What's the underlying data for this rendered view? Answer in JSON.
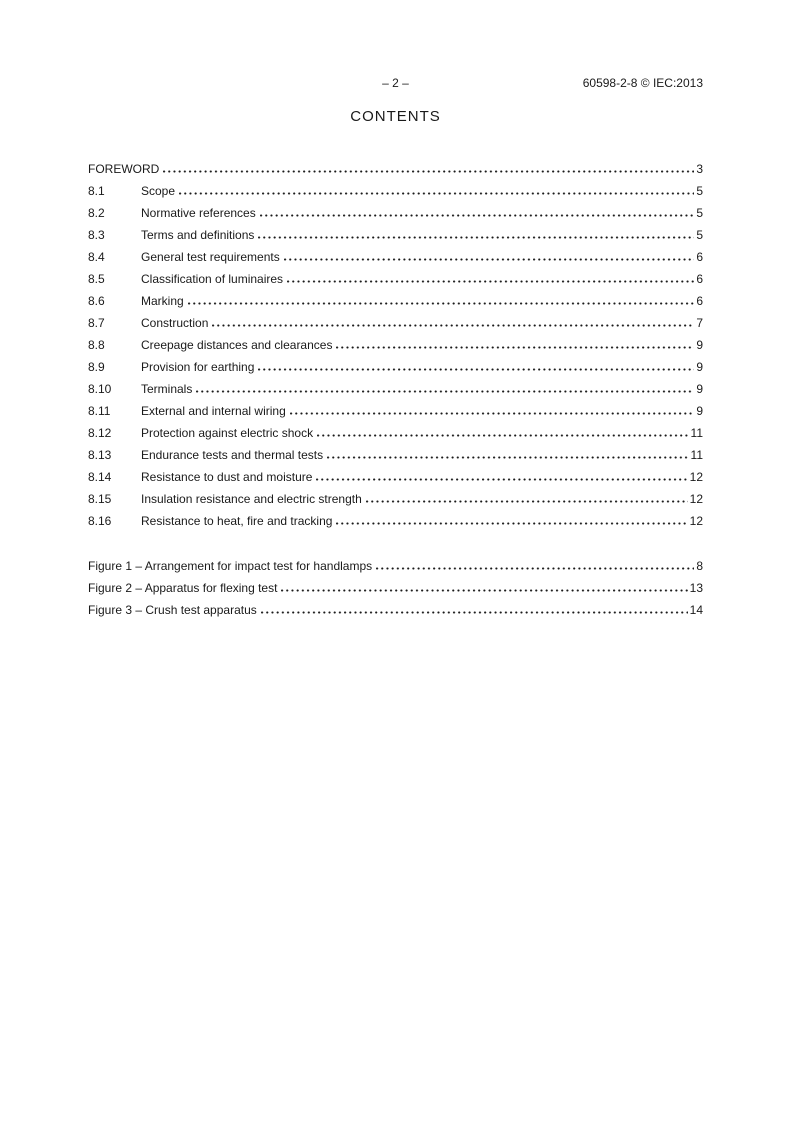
{
  "header": {
    "page_marker": "– 2 –",
    "doc_ref": "60598-2-8 © IEC:2013"
  },
  "title": "CONTENTS",
  "toc": {
    "entries": [
      {
        "num": "",
        "title": "FOREWORD",
        "page": "3"
      },
      {
        "num": "8.1",
        "title": "Scope",
        "page": "5"
      },
      {
        "num": "8.2",
        "title": "Normative references",
        "page": "5"
      },
      {
        "num": "8.3",
        "title": "Terms and definitions",
        "page": "5"
      },
      {
        "num": "8.4",
        "title": "General test requirements",
        "page": "6"
      },
      {
        "num": "8.5",
        "title": "Classification of luminaires",
        "page": "6"
      },
      {
        "num": "8.6",
        "title": "Marking",
        "page": "6"
      },
      {
        "num": "8.7",
        "title": "Construction",
        "page": "7"
      },
      {
        "num": "8.8",
        "title": "Creepage distances and clearances",
        "page": "9"
      },
      {
        "num": "8.9",
        "title": "Provision for earthing",
        "page": "9"
      },
      {
        "num": "8.10",
        "title": "Terminals",
        "page": "9"
      },
      {
        "num": "8.11",
        "title": "External and internal wiring",
        "page": "9"
      },
      {
        "num": "8.12",
        "title": "Protection against electric shock",
        "page": "11"
      },
      {
        "num": "8.13",
        "title": "Endurance tests and thermal tests",
        "page": "11"
      },
      {
        "num": "8.14",
        "title": "Resistance to dust and moisture",
        "page": "12"
      },
      {
        "num": "8.15",
        "title": "Insulation resistance and electric strength",
        "page": "12"
      },
      {
        "num": "8.16",
        "title": "Resistance to heat, fire and tracking",
        "page": "12"
      }
    ],
    "figures": [
      {
        "num": "",
        "title": "Figure 1 – Arrangement for impact test for handlamps",
        "page": "8"
      },
      {
        "num": "",
        "title": "Figure 2 – Apparatus for flexing test",
        "page": "13"
      },
      {
        "num": "",
        "title": "Figure 3 – Crush test apparatus",
        "page": "14"
      }
    ]
  },
  "colors": {
    "text": "#1a1a1a",
    "background": "#ffffff"
  }
}
